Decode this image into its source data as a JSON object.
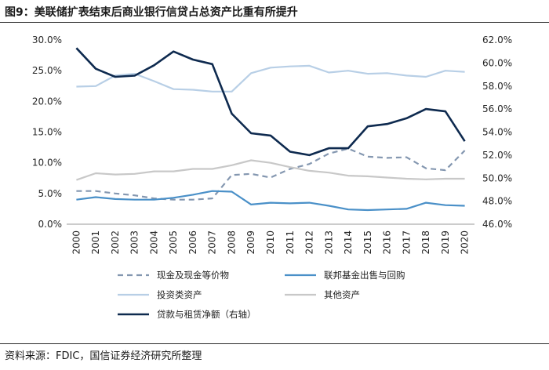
{
  "header": {
    "title": "图9：美联储扩表结束后商业银行信贷占总资产比重有所提升"
  },
  "footer": {
    "source": "资料来源：FDIC，国信证券经济研究所整理"
  },
  "chart_data": {
    "type": "line",
    "title": "图9：美联储扩表结束后商业银行信贷占总资产比重有所提升",
    "categories": [
      "2000",
      "2001",
      "2002",
      "2003",
      "2004",
      "2005",
      "2006",
      "2007",
      "2008",
      "2009",
      "2010",
      "2011",
      "2012",
      "2013",
      "2014",
      "2015",
      "2016",
      "2017",
      "2018",
      "2019",
      "2020"
    ],
    "left_axis": {
      "min": 0,
      "max": 30,
      "step": 5,
      "tick_labels": [
        "0.0%",
        "5.0%",
        "10.0%",
        "15.0%",
        "20.0%",
        "25.0%",
        "30.0%"
      ]
    },
    "right_axis": {
      "min": 46,
      "max": 62,
      "step": 2,
      "tick_labels": [
        "46.0%",
        "48.0%",
        "50.0%",
        "52.0%",
        "54.0%",
        "56.0%",
        "58.0%",
        "60.0%",
        "62.0%"
      ]
    },
    "series": [
      {
        "name": "现金及现金等价物",
        "axis": "left",
        "color": "#8497b0",
        "dash": true,
        "values": [
          5.4,
          5.4,
          5.0,
          4.7,
          4.2,
          4.0,
          4.0,
          4.2,
          8.0,
          8.2,
          7.6,
          9.0,
          9.8,
          11.5,
          12.3,
          11.0,
          10.8,
          10.9,
          9.1,
          8.8,
          12.0
        ]
      },
      {
        "name": "联邦基金出售与回购",
        "axis": "left",
        "color": "#4a90c8",
        "dash": false,
        "values": [
          4.0,
          4.4,
          4.1,
          4.0,
          4.0,
          4.3,
          4.8,
          5.4,
          5.3,
          3.2,
          3.5,
          3.4,
          3.5,
          3.0,
          2.4,
          2.3,
          2.4,
          2.5,
          3.5,
          3.1,
          3.0
        ]
      },
      {
        "name": "投资类资产",
        "axis": "left",
        "color": "#b8cfe6",
        "dash": false,
        "values": [
          22.4,
          22.5,
          24.2,
          24.5,
          23.3,
          22.0,
          21.9,
          21.6,
          21.6,
          24.6,
          25.5,
          25.7,
          25.8,
          24.7,
          25.0,
          24.5,
          24.6,
          24.2,
          24.0,
          25.0,
          24.8
        ]
      },
      {
        "name": "其他资产",
        "axis": "left",
        "color": "#c8c8c8",
        "dash": false,
        "values": [
          7.2,
          8.3,
          8.1,
          8.2,
          8.6,
          8.6,
          9.0,
          9.0,
          9.6,
          10.4,
          10.0,
          9.3,
          8.7,
          8.4,
          7.9,
          7.8,
          7.6,
          7.4,
          7.3,
          7.4,
          7.4
        ]
      },
      {
        "name": "贷款与租赁净额（右轴）",
        "axis": "right",
        "color": "#0e2a4f",
        "dash": false,
        "values": [
          61.3,
          59.5,
          58.8,
          58.9,
          59.8,
          61.0,
          60.3,
          59.9,
          55.6,
          53.9,
          53.7,
          52.3,
          52.0,
          52.6,
          52.6,
          54.5,
          54.7,
          55.2,
          56.0,
          55.8,
          53.2
        ]
      }
    ],
    "legend_position": "bottom"
  }
}
